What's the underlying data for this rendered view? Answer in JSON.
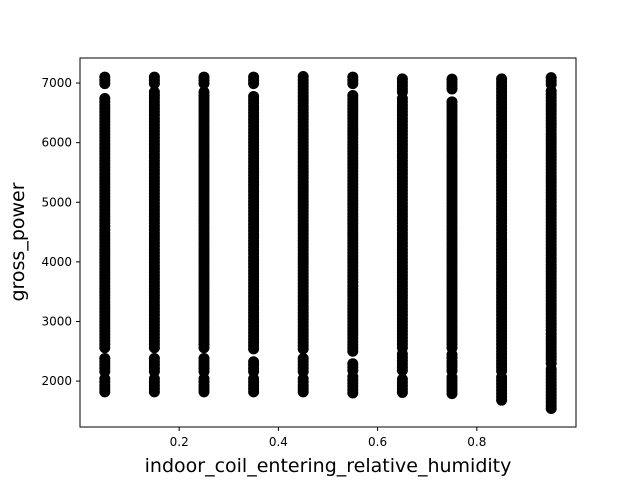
{
  "chart_data": {
    "type": "scatter",
    "title": "",
    "xlabel": "indoor_coil_entering_relative_humidity",
    "ylabel": "gross_power",
    "xlim": [
      0.0,
      1.0
    ],
    "ylim": [
      1230,
      7420
    ],
    "xticks": [
      0.2,
      0.4,
      0.6,
      0.8
    ],
    "yticks": [
      2000,
      3000,
      4000,
      5000,
      6000,
      7000
    ],
    "xtick_labels": [
      "0.2",
      "0.4",
      "0.6",
      "0.8"
    ],
    "ytick_labels": [
      "2000",
      "3000",
      "4000",
      "5000",
      "6000",
      "7000"
    ],
    "grid": false,
    "legend": "none",
    "marker_color": "#000000",
    "columns": [
      {
        "x": 0.05,
        "segments": [
          [
            1820,
            2060
          ],
          [
            2160,
            2380
          ],
          [
            2560,
            6760
          ],
          [
            6990,
            7120
          ]
        ]
      },
      {
        "x": 0.15,
        "segments": [
          [
            1820,
            2060
          ],
          [
            2160,
            2380
          ],
          [
            2560,
            6860
          ],
          [
            6990,
            7120
          ]
        ]
      },
      {
        "x": 0.25,
        "segments": [
          [
            1820,
            2060
          ],
          [
            2160,
            2400
          ],
          [
            2560,
            6850
          ],
          [
            6990,
            7120
          ]
        ]
      },
      {
        "x": 0.35,
        "segments": [
          [
            1820,
            2060
          ],
          [
            2160,
            2360
          ],
          [
            2540,
            6800
          ],
          [
            6990,
            7120
          ]
        ]
      },
      {
        "x": 0.45,
        "segments": [
          [
            1820,
            2060
          ],
          [
            2160,
            2380
          ],
          [
            2540,
            6970
          ],
          [
            7000,
            7140
          ]
        ]
      },
      {
        "x": 0.55,
        "segments": [
          [
            1800,
            2080
          ],
          [
            2180,
            2340
          ],
          [
            2500,
            6840
          ],
          [
            6990,
            7100
          ]
        ]
      },
      {
        "x": 0.65,
        "segments": [
          [
            1810,
            2080
          ],
          [
            2180,
            2460
          ],
          [
            2560,
            6750
          ],
          [
            6850,
            7110
          ]
        ]
      },
      {
        "x": 0.75,
        "segments": [
          [
            1790,
            2080
          ],
          [
            2170,
            2480
          ],
          [
            2560,
            6720
          ],
          [
            6900,
            7100
          ]
        ]
      },
      {
        "x": 0.85,
        "segments": [
          [
            1680,
            2080
          ],
          [
            2170,
            2500
          ],
          [
            2560,
            7100
          ]
        ]
      },
      {
        "x": 0.95,
        "segments": [
          [
            1540,
            2200
          ],
          [
            2300,
            6890
          ],
          [
            6980,
            7120
          ]
        ]
      }
    ]
  }
}
